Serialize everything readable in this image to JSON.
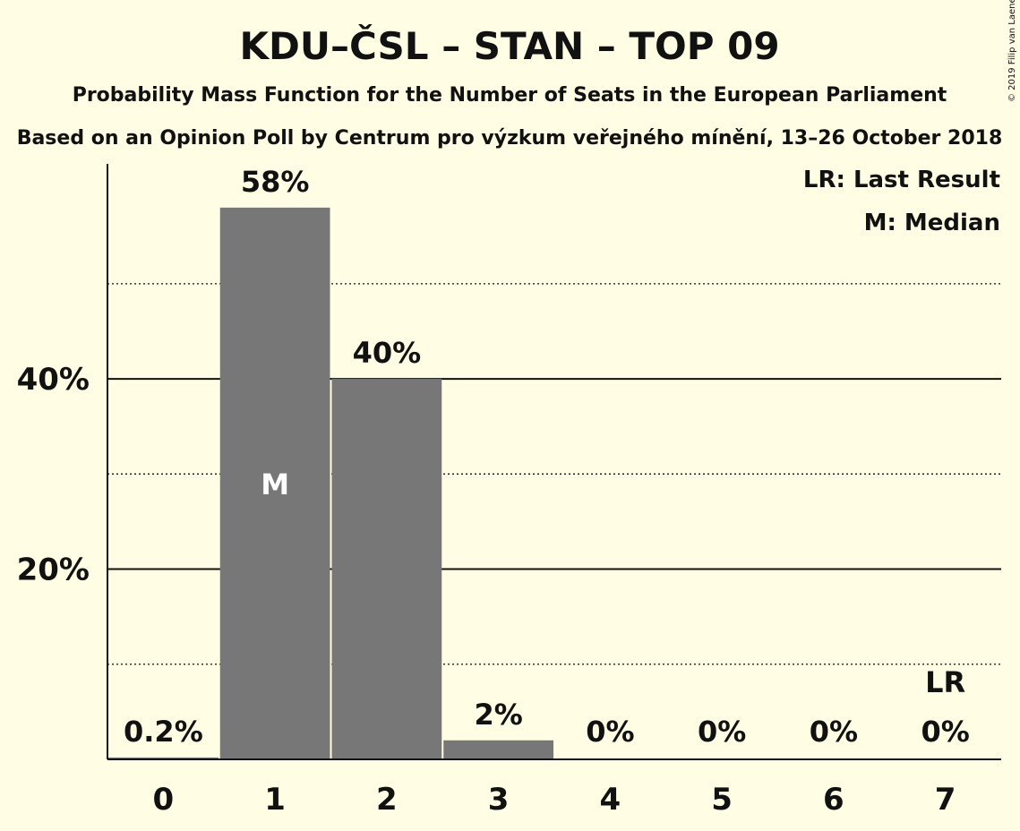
{
  "colors": {
    "background": "#fffde3",
    "bar": "#777777",
    "text": "#111111",
    "median_text": "#ffffff"
  },
  "copyright": "© 2019 Filip van Laenen",
  "chart_data": {
    "type": "bar",
    "title": "KDU–ČSL – STAN – TOP 09",
    "subtitle": "Probability Mass Function for the Number of Seats in the European Parliament",
    "subtitle2": "Based on an Opinion Poll by Centrum pro výzkum veřejného mínění, 13–26 October 2018",
    "categories": [
      "0",
      "1",
      "2",
      "3",
      "4",
      "5",
      "6",
      "7"
    ],
    "values": [
      0.2,
      58,
      40,
      2,
      0,
      0,
      0,
      0
    ],
    "value_labels": [
      "0.2%",
      "58%",
      "40%",
      "2%",
      "0%",
      "0%",
      "0%",
      "0%"
    ],
    "ylim": [
      0,
      62.6
    ],
    "major_ticks": [
      20,
      40
    ],
    "major_tick_labels": [
      "20%",
      "40%"
    ],
    "minor_gridlines": [
      10,
      30,
      50
    ],
    "grid": true,
    "median_seat": 1,
    "median_marker": "M",
    "last_result_seat": 7,
    "last_result_marker": "LR",
    "legend": [
      "LR: Last Result",
      "M: Median"
    ],
    "legend_position": "top-right"
  }
}
